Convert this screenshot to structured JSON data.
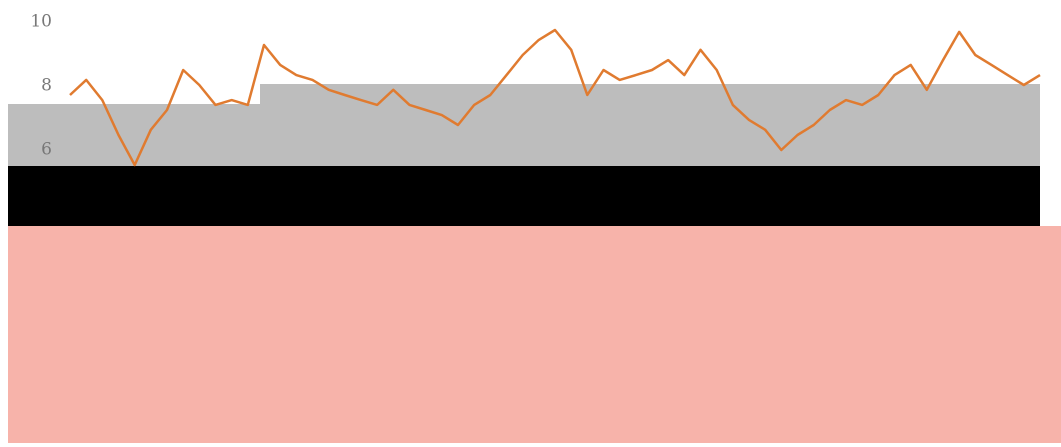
{
  "chart_data": {
    "type": "line",
    "values": [
      7.72,
      8.19,
      7.56,
      6.47,
      5.53,
      6.63,
      7.25,
      8.5,
      8.03,
      7.41,
      7.56,
      7.41,
      9.28,
      8.66,
      8.34,
      8.19,
      7.88,
      7.72,
      7.56,
      7.41,
      7.88,
      7.41,
      7.25,
      7.09,
      6.78,
      7.41,
      7.72,
      8.34,
      8.97,
      9.44,
      9.75,
      9.13,
      7.72,
      8.5,
      8.19,
      8.34,
      8.5,
      8.81,
      8.34,
      9.13,
      8.5,
      7.41,
      6.94,
      6.63,
      6.0,
      6.47,
      6.78,
      7.25,
      7.56,
      7.41,
      7.72,
      8.34,
      8.66,
      7.88,
      8.81,
      9.69,
      8.97,
      8.66,
      8.34,
      8.03,
      8.34
    ],
    "color": "#e07b30",
    "ylim": [
      5,
      10
    ],
    "yticks": [
      6,
      8,
      10
    ]
  }
}
